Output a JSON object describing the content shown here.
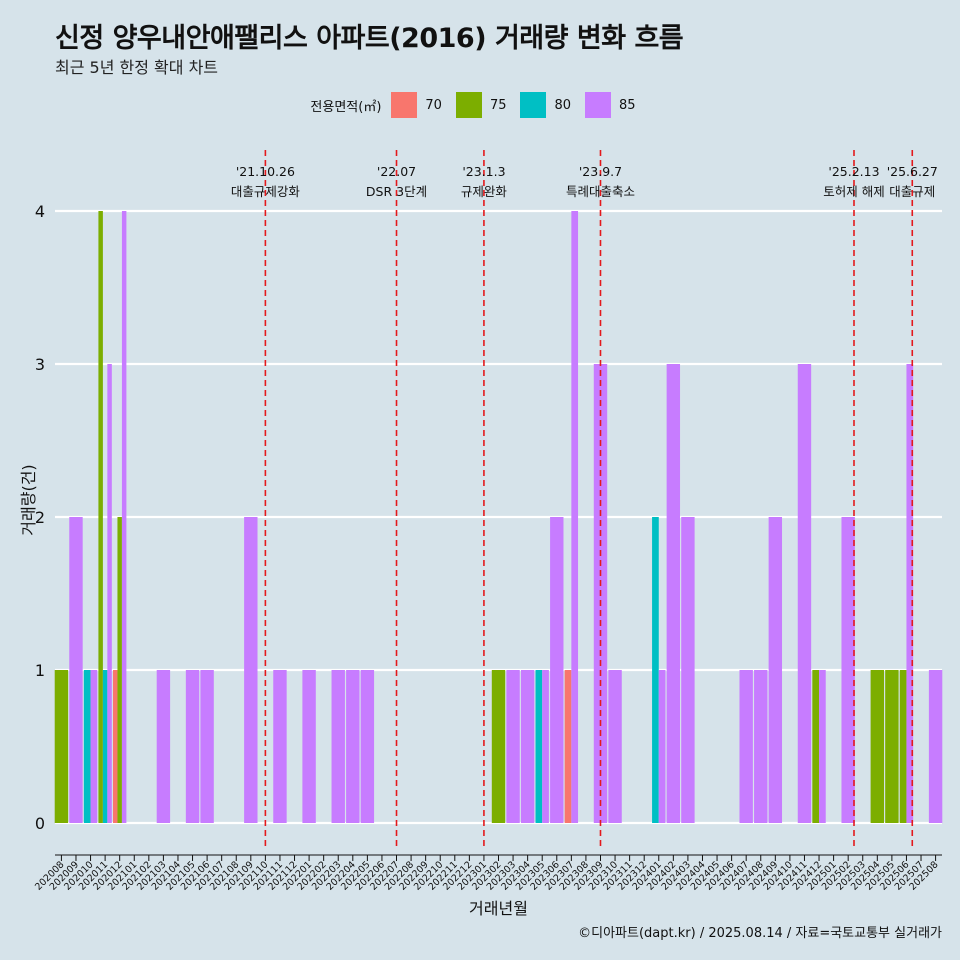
{
  "title": "신정 양우내안애팰리스 아파트(2016) 거래량 변화 흐름",
  "subtitle": "최근 5년 한정 확대 차트",
  "caption": "©디아파트(dapt.kr) / 2025.08.14 / 자료=국토교통부 실거래가",
  "legend": {
    "title": "전용면적(㎡)",
    "items": [
      {
        "label": "70",
        "color": "#f8766d"
      },
      {
        "label": "75",
        "color": "#7cae00"
      },
      {
        "label": "80",
        "color": "#00bfc4"
      },
      {
        "label": "85",
        "color": "#c77cff"
      }
    ]
  },
  "chart_data": {
    "type": "bar",
    "stacking": "dodge",
    "xlabel": "거래년월",
    "ylabel": "거래량(건)",
    "ylim": [
      0,
      4
    ],
    "yticks": [
      0,
      1,
      2,
      3,
      4
    ],
    "grid": true,
    "legend_position": "top",
    "categories": [
      "202008",
      "202009",
      "202010",
      "202011",
      "202012",
      "202101",
      "202102",
      "202103",
      "202104",
      "202105",
      "202106",
      "202107",
      "202108",
      "202109",
      "202110",
      "202111",
      "202112",
      "202201",
      "202202",
      "202203",
      "202204",
      "202205",
      "202206",
      "202207",
      "202208",
      "202209",
      "202210",
      "202211",
      "202212",
      "202301",
      "202302",
      "202303",
      "202304",
      "202305",
      "202306",
      "202307",
      "202308",
      "202309",
      "202310",
      "202311",
      "202312",
      "202401",
      "202402",
      "202403",
      "202404",
      "202405",
      "202406",
      "202407",
      "202408",
      "202409",
      "202410",
      "202411",
      "202412",
      "202501",
      "202502",
      "202503",
      "202504",
      "202505",
      "202506",
      "202507",
      "202508"
    ],
    "bars": [
      {
        "month": "202008",
        "sizes": [
          "75"
        ],
        "values": [
          1
        ]
      },
      {
        "month": "202009",
        "sizes": [
          "85"
        ],
        "values": [
          2
        ]
      },
      {
        "month": "202010",
        "sizes": [
          "80",
          "85"
        ],
        "values": [
          1,
          1
        ]
      },
      {
        "month": "202011",
        "sizes": [
          "75",
          "80",
          "85"
        ],
        "values": [
          4,
          1,
          3
        ]
      },
      {
        "month": "202012",
        "sizes": [
          "70",
          "75",
          "85"
        ],
        "values": [
          1,
          2,
          4
        ]
      },
      {
        "month": "202103",
        "sizes": [
          "85"
        ],
        "values": [
          1
        ]
      },
      {
        "month": "202105",
        "sizes": [
          "85"
        ],
        "values": [
          1
        ]
      },
      {
        "month": "202106",
        "sizes": [
          "85"
        ],
        "values": [
          1
        ]
      },
      {
        "month": "202109",
        "sizes": [
          "85"
        ],
        "values": [
          2
        ]
      },
      {
        "month": "202111",
        "sizes": [
          "85"
        ],
        "values": [
          1
        ]
      },
      {
        "month": "202201",
        "sizes": [
          "85"
        ],
        "values": [
          1
        ]
      },
      {
        "month": "202203",
        "sizes": [
          "85"
        ],
        "values": [
          1
        ]
      },
      {
        "month": "202204",
        "sizes": [
          "85"
        ],
        "values": [
          1
        ]
      },
      {
        "month": "202205",
        "sizes": [
          "85"
        ],
        "values": [
          1
        ]
      },
      {
        "month": "202302",
        "sizes": [
          "75"
        ],
        "values": [
          1
        ]
      },
      {
        "month": "202303",
        "sizes": [
          "85"
        ],
        "values": [
          1
        ]
      },
      {
        "month": "202304",
        "sizes": [
          "85"
        ],
        "values": [
          1
        ]
      },
      {
        "month": "202305",
        "sizes": [
          "80",
          "85"
        ],
        "values": [
          1,
          1
        ]
      },
      {
        "month": "202306",
        "sizes": [
          "85"
        ],
        "values": [
          2
        ]
      },
      {
        "month": "202307",
        "sizes": [
          "70",
          "85"
        ],
        "values": [
          1,
          4
        ]
      },
      {
        "month": "202309",
        "sizes": [
          "85"
        ],
        "values": [
          3
        ]
      },
      {
        "month": "202310",
        "sizes": [
          "85"
        ],
        "values": [
          1
        ]
      },
      {
        "month": "202401",
        "sizes": [
          "80",
          "85"
        ],
        "values": [
          2,
          1
        ]
      },
      {
        "month": "202402",
        "sizes": [
          "85"
        ],
        "values": [
          3
        ]
      },
      {
        "month": "202403",
        "sizes": [
          "85"
        ],
        "values": [
          2
        ]
      },
      {
        "month": "202407",
        "sizes": [
          "85"
        ],
        "values": [
          1
        ]
      },
      {
        "month": "202408",
        "sizes": [
          "85"
        ],
        "values": [
          1
        ]
      },
      {
        "month": "202409",
        "sizes": [
          "85"
        ],
        "values": [
          2
        ]
      },
      {
        "month": "202411",
        "sizes": [
          "85"
        ],
        "values": [
          3
        ]
      },
      {
        "month": "202412",
        "sizes": [
          "75",
          "85"
        ],
        "values": [
          1,
          1
        ]
      },
      {
        "month": "202502",
        "sizes": [
          "85"
        ],
        "values": [
          2
        ]
      },
      {
        "month": "202504",
        "sizes": [
          "75"
        ],
        "values": [
          1
        ]
      },
      {
        "month": "202505",
        "sizes": [
          "75"
        ],
        "values": [
          1
        ]
      },
      {
        "month": "202506",
        "sizes": [
          "75",
          "85"
        ],
        "values": [
          1,
          3
        ]
      },
      {
        "month": "202508",
        "sizes": [
          "85"
        ],
        "values": [
          1
        ]
      }
    ],
    "annotations": [
      {
        "at": 14.0,
        "date": "'21.10.26",
        "label": "대출규제강화"
      },
      {
        "at": 23.0,
        "date": "'22.07",
        "label": "DSR 3단계"
      },
      {
        "at": 29.0,
        "date": "'23.1.3",
        "label": "규제완화"
      },
      {
        "at": 37.0,
        "date": "'23.9.7",
        "label": "특례대출축소"
      },
      {
        "at": 54.4,
        "date": "'25.2.13",
        "label": "토허제 해제"
      },
      {
        "at": 58.4,
        "date": "'25.6.27",
        "label": "대출규제"
      }
    ]
  }
}
